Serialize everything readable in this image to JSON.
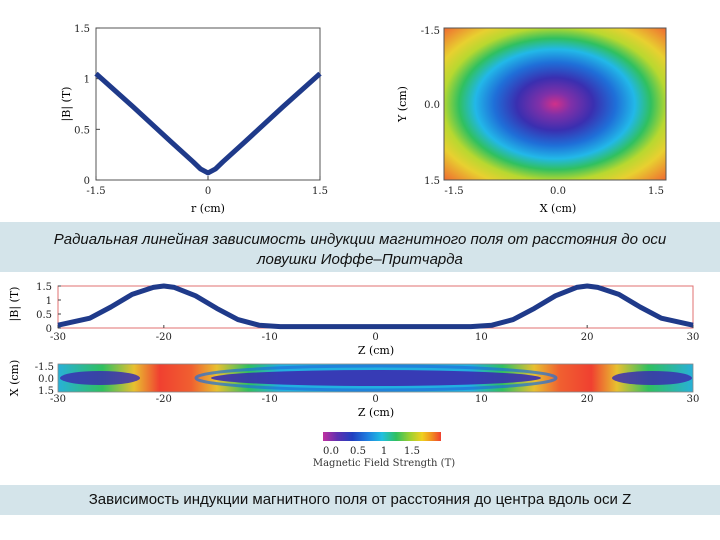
{
  "captions": {
    "top_line1": "Радиальная линейная зависимость индукции магнитного поля от расстояния до оси",
    "top_line2": "ловушки Иоффе–Притчарда",
    "bottom": "Зависимость индукции магнитного поля от расстояния до центра вдоль оси Z"
  },
  "chart_data": [
    {
      "id": "radial",
      "type": "line",
      "xlabel": "r (cm)",
      "ylabel": "|B| (T)",
      "xlim": [
        -1.5,
        1.5
      ],
      "ylim": [
        0,
        1.5
      ],
      "xticks": [
        "-1.5",
        "0",
        "1.5"
      ],
      "yticks": [
        "0",
        "0.5",
        "1",
        "1.5"
      ],
      "color": "#1f3a8a",
      "x": [
        -1.5,
        -1.0,
        -0.5,
        -0.2,
        -0.1,
        0,
        0.1,
        0.2,
        0.5,
        1.0,
        1.5
      ],
      "y": [
        1.05,
        0.72,
        0.38,
        0.18,
        0.11,
        0.07,
        0.11,
        0.18,
        0.38,
        0.72,
        1.05
      ]
    },
    {
      "id": "xy-map",
      "type": "heatmap",
      "xlabel": "X (cm)",
      "ylabel": "Y (cm)",
      "xticks": [
        "-1.5",
        "0.0",
        "1.5"
      ],
      "yticks": [
        "-1.5",
        "0.0",
        "1.5"
      ],
      "description_colors": [
        "#d0308a",
        "#3a2fb0",
        "#1f6fd8",
        "#22b8e8",
        "#30c060",
        "#e8d030",
        "#f06030"
      ]
    },
    {
      "id": "axial",
      "type": "line",
      "xlabel": "Z (cm)",
      "ylabel": "|B| (T)",
      "xlim": [
        -30,
        30
      ],
      "ylim": [
        0,
        1.5
      ],
      "xticks": [
        "-30",
        "-20",
        "-10",
        "0",
        "10",
        "20",
        "30"
      ],
      "yticks": [
        "0",
        "0.5",
        "1",
        "1.5"
      ],
      "color": "#1f3a8a",
      "x": [
        -30,
        -27,
        -25,
        -23,
        -21,
        -20,
        -19,
        -17,
        -15,
        -13,
        -11,
        -9,
        -5,
        0,
        5,
        9,
        11,
        13,
        15,
        17,
        19,
        20,
        21,
        23,
        25,
        27,
        30
      ],
      "y": [
        0.1,
        0.35,
        0.75,
        1.2,
        1.45,
        1.5,
        1.45,
        1.15,
        0.7,
        0.3,
        0.1,
        0.05,
        0.05,
        0.05,
        0.05,
        0.05,
        0.1,
        0.3,
        0.7,
        1.15,
        1.45,
        1.5,
        1.45,
        1.2,
        0.75,
        0.35,
        0.1
      ]
    },
    {
      "id": "xz-map",
      "type": "heatmap",
      "xlabel": "Z (cm)",
      "ylabel": "X (cm)",
      "xticks": [
        "-30",
        "-20",
        "-10",
        "0",
        "10",
        "20",
        "30"
      ],
      "yticks": [
        "-1.5",
        "0.0",
        "1.5"
      ]
    },
    {
      "id": "colorbar",
      "type": "heatmap",
      "label": "Magnetic Field Strength (T)",
      "ticks": [
        "0.0",
        "0.5",
        "1",
        "1.5"
      ],
      "colors": [
        "#c030a0",
        "#6030b0",
        "#2040c0",
        "#2080e0",
        "#20c0e0",
        "#30c060",
        "#a0d030",
        "#f0d020",
        "#f09020",
        "#f04030"
      ]
    }
  ]
}
